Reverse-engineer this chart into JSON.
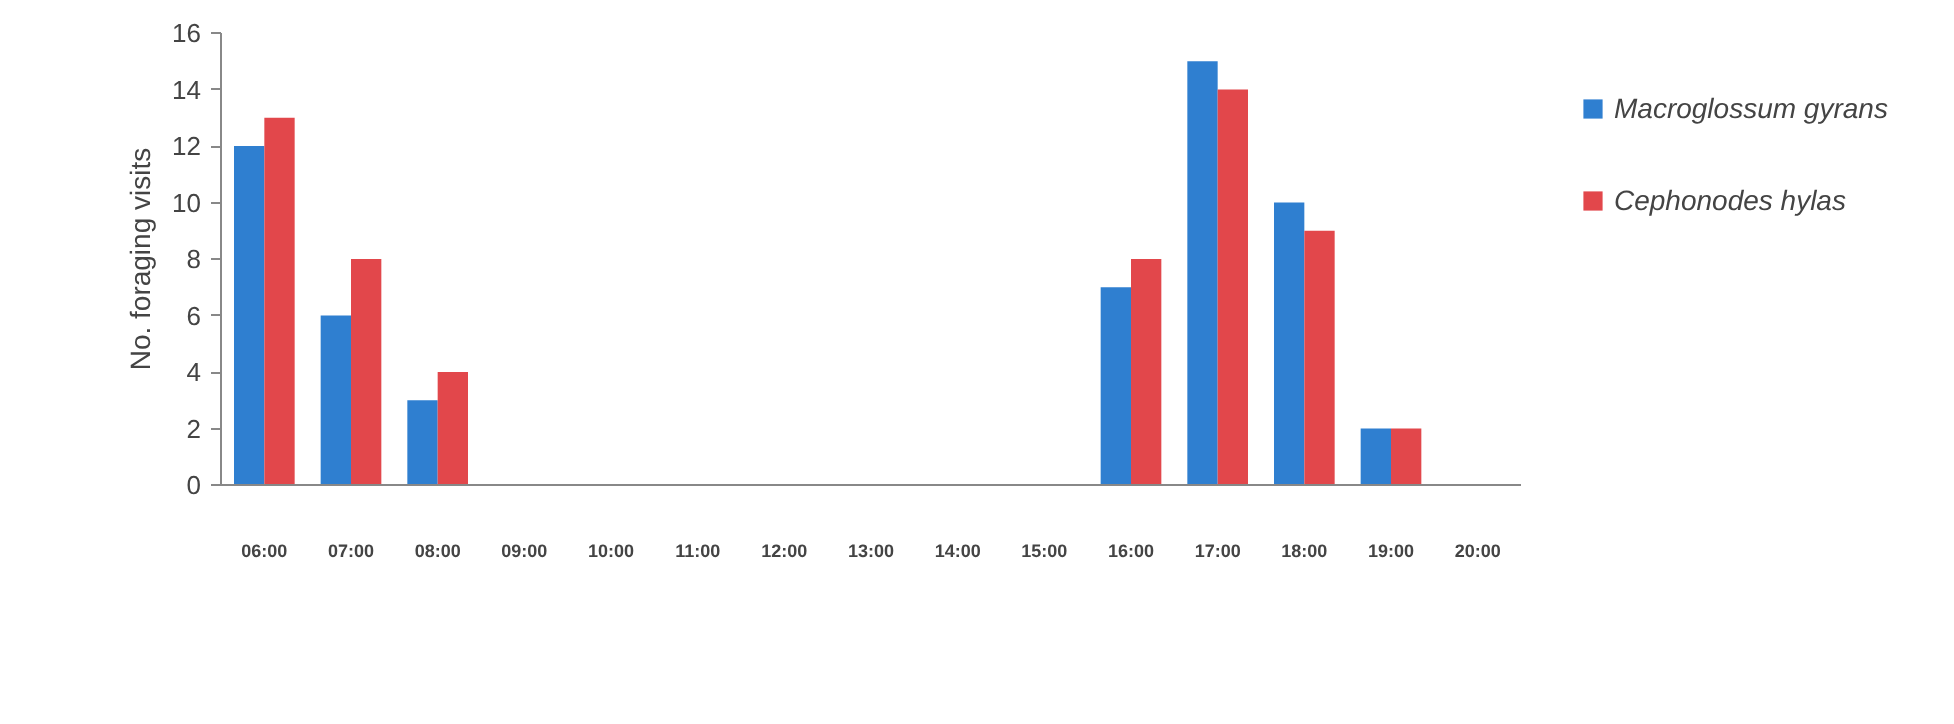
{
  "chart_data": {
    "type": "bar",
    "ylabel": "No. foraging visits",
    "categories": [
      "06:00",
      "07:00",
      "08:00",
      "09:00",
      "10:00",
      "11:00",
      "12:00",
      "13:00",
      "14:00",
      "15:00",
      "16:00",
      "17:00",
      "18:00",
      "19:00",
      "20:00"
    ],
    "series": [
      {
        "name": "Macroglossum gyrans",
        "color": "#2f7fd0",
        "values": [
          12,
          6,
          3,
          0,
          0,
          0,
          0,
          0,
          0,
          0,
          7,
          15,
          10,
          2,
          0
        ]
      },
      {
        "name": "Cephonodes hylas",
        "color": "#e2474b",
        "values": [
          13,
          8,
          4,
          0,
          0,
          0,
          0,
          0,
          0,
          0,
          8,
          14,
          9,
          2,
          0
        ]
      }
    ],
    "ylim": [
      0,
      16
    ],
    "yticks": [
      0,
      2,
      4,
      6,
      8,
      10,
      12,
      14,
      16
    ],
    "grid": false,
    "legend": "right"
  }
}
